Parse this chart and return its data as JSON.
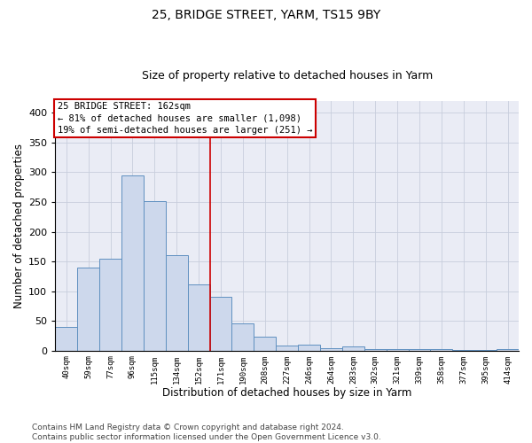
{
  "title1": "25, BRIDGE STREET, YARM, TS15 9BY",
  "title2": "Size of property relative to detached houses in Yarm",
  "xlabel": "Distribution of detached houses by size in Yarm",
  "ylabel": "Number of detached properties",
  "bar_labels": [
    "40sqm",
    "59sqm",
    "77sqm",
    "96sqm",
    "115sqm",
    "134sqm",
    "152sqm",
    "171sqm",
    "190sqm",
    "208sqm",
    "227sqm",
    "246sqm",
    "264sqm",
    "283sqm",
    "302sqm",
    "321sqm",
    "339sqm",
    "358sqm",
    "377sqm",
    "395sqm",
    "414sqm"
  ],
  "bar_heights": [
    40,
    140,
    155,
    295,
    252,
    160,
    112,
    91,
    46,
    23,
    8,
    10,
    4,
    7,
    2,
    3,
    2,
    3,
    1,
    1,
    3
  ],
  "bar_color": "#cdd8ec",
  "bar_edgecolor": "#6090c0",
  "bar_linewidth": 0.7,
  "vline_x": 6.5,
  "vline_color": "#cc0000",
  "vline_linewidth": 1.2,
  "annotation_text": "25 BRIDGE STREET: 162sqm\n← 81% of detached houses are smaller (1,098)\n19% of semi-detached houses are larger (251) →",
  "annotation_box_color": "#cc0000",
  "annotation_text_fontsize": 7.5,
  "ylim": [
    0,
    420
  ],
  "yticks": [
    0,
    50,
    100,
    150,
    200,
    250,
    300,
    350,
    400
  ],
  "grid_color": "#c8cedc",
  "background_color": "#eaecf5",
  "footer_text": "Contains HM Land Registry data © Crown copyright and database right 2024.\nContains public sector information licensed under the Open Government Licence v3.0.",
  "title1_fontsize": 10,
  "title2_fontsize": 9,
  "xlabel_fontsize": 8.5,
  "ylabel_fontsize": 8.5,
  "footer_fontsize": 6.5
}
